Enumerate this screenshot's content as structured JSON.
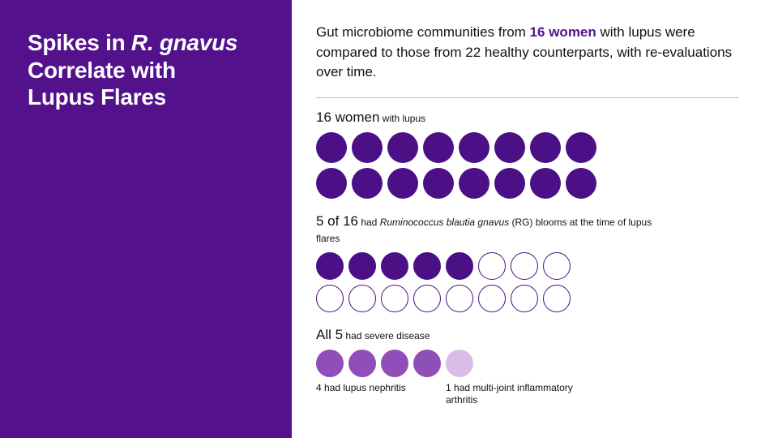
{
  "palette": {
    "purple_primary": "#53118c",
    "purple_deep": "#4b0f86",
    "purple_mid": "#8e4fb8",
    "purple_light": "#d9bde8",
    "white": "#ffffff",
    "text": "#111111",
    "rule": "#bdbdbd"
  },
  "left_panel": {
    "title_line1_a": "Spikes in ",
    "title_line1_b_italic": "R. gnavus",
    "title_line2": "Correlate with",
    "title_line3": "Lupus Flares",
    "background": "#53118c",
    "title_fontsize": 28,
    "title_color": "#ffffff"
  },
  "intro": {
    "pre": "Gut microbiome communities from ",
    "bold": "16 women",
    "post": " with lupus were compared to those from 22 healthy counterparts, with re-evaluations over time.",
    "bold_color": "#53118c",
    "fontsize": 17
  },
  "section1": {
    "head_big": "16 women",
    "head_small": " with lupus",
    "dots": {
      "rows": 2,
      "cols": 8,
      "diameter": 38,
      "gap": 6,
      "filled_count": 16,
      "fill_color": "#4b0f86",
      "stroke_color": "#4b0f86",
      "stroke_width": 0
    }
  },
  "section2": {
    "head_big": "5 of 16",
    "head_small_a": " had ",
    "head_small_ital": "Ruminococcus blautia gnavus",
    "head_small_b": " (RG) blooms at the time of lupus flares",
    "dots": {
      "rows": 2,
      "cols": 8,
      "diameter": 34,
      "gap": 6,
      "filled_count": 5,
      "fill_color": "#4b0f86",
      "empty_fill": "#ffffff",
      "stroke_color": "#4b0f86",
      "stroke_width": 1.5
    }
  },
  "section3": {
    "head_big": "All 5",
    "head_small": " had severe disease",
    "dots": {
      "rows": 1,
      "cols": 5,
      "diameter": 34,
      "gap": 6,
      "colors": [
        "#8e4fb8",
        "#8e4fb8",
        "#8e4fb8",
        "#8e4fb8",
        "#d9bde8"
      ],
      "stroke_width": 0
    },
    "footnote_a_n": "4",
    "footnote_a_text": " had lupus nephritis",
    "footnote_b_n": "1",
    "footnote_b_text": " had multi-joint inflammatory arthritis",
    "footnote_a_width": 160,
    "footnote_b_width": 170
  }
}
